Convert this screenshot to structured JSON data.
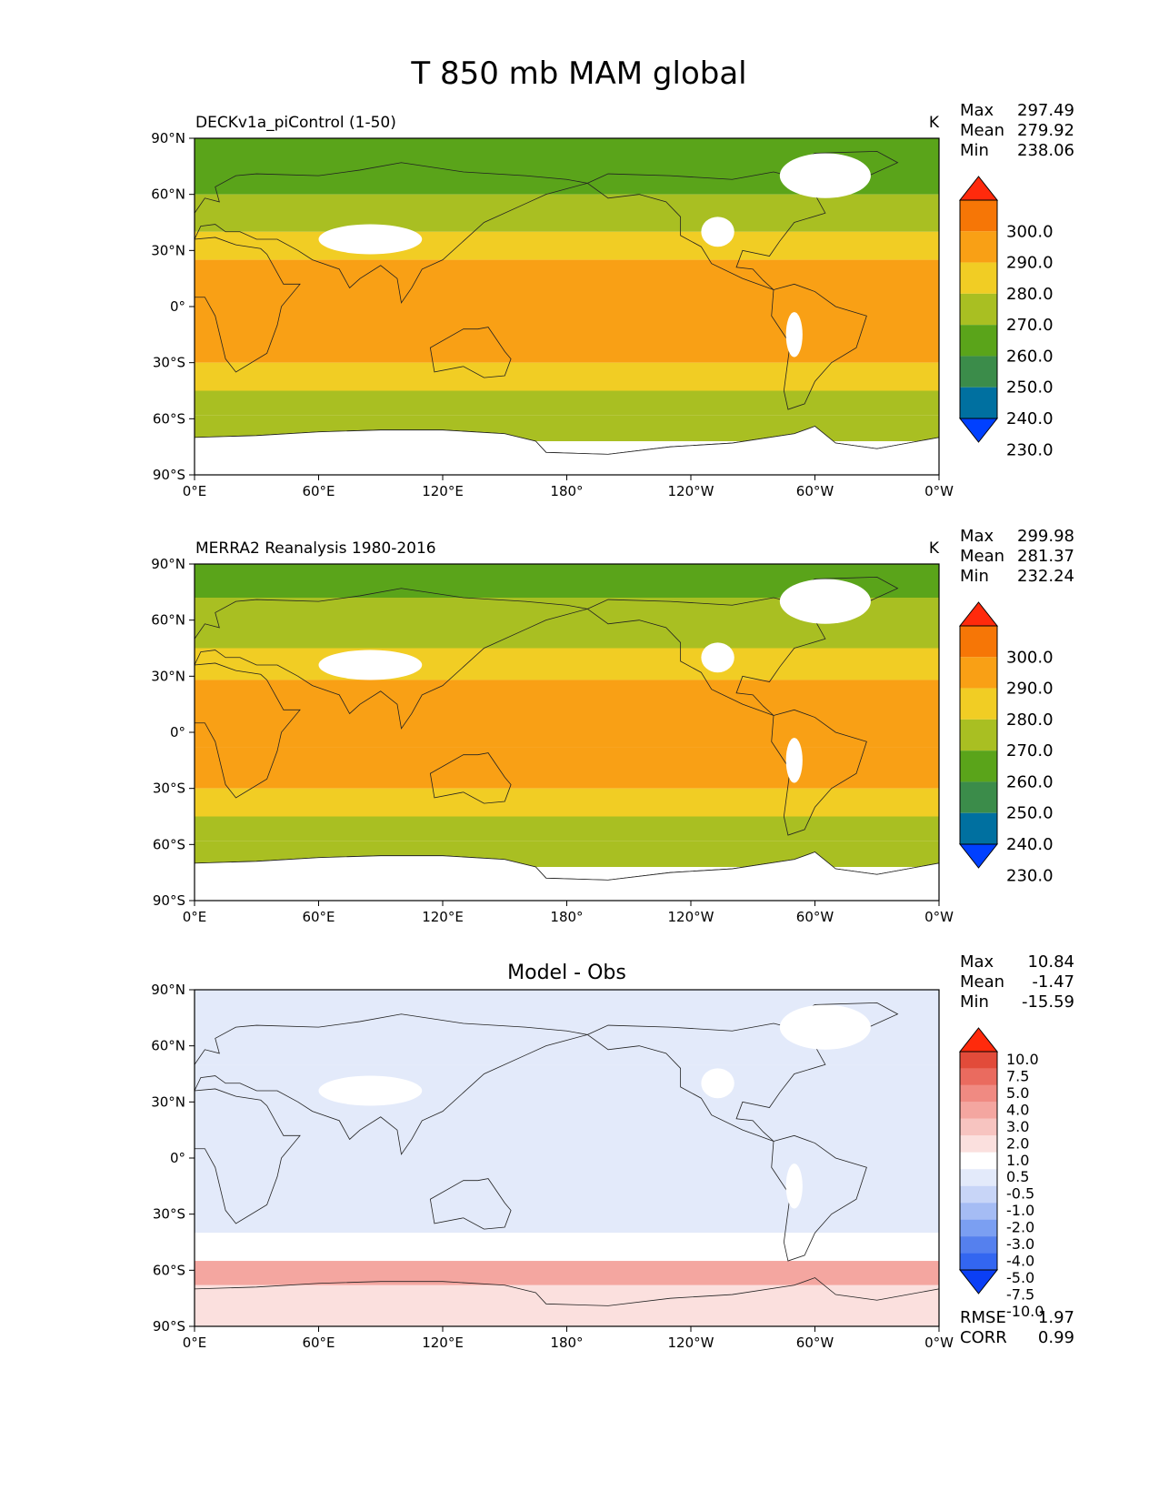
{
  "title": "T 850 mb MAM global",
  "x_tick_labels": [
    "0°E",
    "60°E",
    "120°E",
    "180°",
    "120°W",
    "60°W",
    "0°W"
  ],
  "y_tick_labels": [
    "90°N",
    "60°N",
    "30°N",
    "0°",
    "30°S",
    "60°S",
    "90°S"
  ],
  "colors": {
    "abs_levels": [
      "#0040ff",
      "#0070a0",
      "#3b8c4a",
      "#5aa41a",
      "#a9bf22",
      "#f1cd24",
      "#f9a015",
      "#f67606",
      "#ff2a0c"
    ],
    "diff_levels": [
      "#0b3ff5",
      "#3366f0",
      "#5580ee",
      "#7b9ff2",
      "#a5bcf4",
      "#c8d5f7",
      "#e3eafa",
      "#ffffff",
      "#fbe0de",
      "#f7c4c0",
      "#f4a6a0",
      "#f08a82",
      "#ea6b5f",
      "#e24b3a",
      "#ff2a0c"
    ],
    "land": "#ffffff",
    "coast": "#222222"
  },
  "panels": [
    {
      "left_label": "DECKv1a_piControl (1-50)",
      "units": "K",
      "stats": [
        {
          "label": "Max",
          "value": "297.49"
        },
        {
          "label": "Mean",
          "value": "279.92"
        },
        {
          "label": "Min",
          "value": "238.06"
        }
      ],
      "colorbar_ticks": [
        "300.0",
        "290.0",
        "280.0",
        "270.0",
        "260.0",
        "250.0",
        "240.0",
        "230.0"
      ]
    },
    {
      "left_label": "MERRA2 Reanalysis 1980-2016",
      "units": "K",
      "stats": [
        {
          "label": "Max",
          "value": "299.98"
        },
        {
          "label": "Mean",
          "value": "281.37"
        },
        {
          "label": "Min",
          "value": "232.24"
        }
      ],
      "colorbar_ticks": [
        "300.0",
        "290.0",
        "280.0",
        "270.0",
        "260.0",
        "250.0",
        "240.0",
        "230.0"
      ]
    },
    {
      "center_title": "Model - Obs",
      "stats": [
        {
          "label": "Max",
          "value": "10.84"
        },
        {
          "label": "Mean",
          "value": "-1.47"
        },
        {
          "label": "Min",
          "value": "-15.59"
        }
      ],
      "colorbar_ticks": [
        "10.0",
        "7.5",
        "5.0",
        "4.0",
        "3.0",
        "2.0",
        "1.0",
        "0.5",
        "-0.5",
        "-1.0",
        "-2.0",
        "-3.0",
        "-4.0",
        "-5.0",
        "-7.5",
        "-10.0"
      ],
      "metrics": [
        {
          "label": "RMSE",
          "value": "1.97"
        },
        {
          "label": "CORR",
          "value": "0.99"
        }
      ]
    }
  ],
  "chart_data": [
    {
      "type": "heatmap",
      "title": "DECKv1a_piControl (1-50)",
      "units": "K",
      "xlim": [
        0,
        360
      ],
      "ylim": [
        -90,
        90
      ],
      "levels": [
        230,
        240,
        250,
        260,
        270,
        280,
        290,
        300
      ],
      "zonal_band_values": [
        {
          "lat_range": [
            60,
            90
          ],
          "value": 255
        },
        {
          "lat_range": [
            40,
            60
          ],
          "value": 262
        },
        {
          "lat_range": [
            25,
            40
          ],
          "value": 275
        },
        {
          "lat_range": [
            -30,
            25
          ],
          "value": 284
        },
        {
          "lat_range": [
            -45,
            -30
          ],
          "value": 275
        },
        {
          "lat_range": [
            -58,
            -45
          ],
          "value": 268
        },
        {
          "lat_range": [
            -72,
            -58
          ],
          "value": 262
        }
      ],
      "stats": {
        "max": 297.49,
        "mean": 279.92,
        "min": 238.06
      }
    },
    {
      "type": "heatmap",
      "title": "MERRA2 Reanalysis 1980-2016",
      "units": "K",
      "xlim": [
        0,
        360
      ],
      "ylim": [
        -90,
        90
      ],
      "levels": [
        230,
        240,
        250,
        260,
        270,
        280,
        290,
        300
      ],
      "zonal_band_values": [
        {
          "lat_range": [
            72,
            90
          ],
          "value": 255
        },
        {
          "lat_range": [
            45,
            72
          ],
          "value": 262
        },
        {
          "lat_range": [
            28,
            45
          ],
          "value": 275
        },
        {
          "lat_range": [
            -8,
            28
          ],
          "value": 288
        },
        {
          "lat_range": [
            -30,
            -8
          ],
          "value": 284
        },
        {
          "lat_range": [
            -45,
            -30
          ],
          "value": 275
        },
        {
          "lat_range": [
            -58,
            -45
          ],
          "value": 268
        },
        {
          "lat_range": [
            -72,
            -58
          ],
          "value": 262
        }
      ],
      "stats": {
        "max": 299.98,
        "mean": 281.37,
        "min": 232.24
      }
    },
    {
      "type": "heatmap",
      "title": "Model - Obs",
      "xlim": [
        0,
        360
      ],
      "ylim": [
        -90,
        90
      ],
      "levels": [
        -10.0,
        -7.5,
        -5.0,
        -4.0,
        -3.0,
        -2.0,
        -1.0,
        -0.5,
        0.5,
        1.0,
        2.0,
        3.0,
        4.0,
        5.0,
        7.5,
        10.0
      ],
      "zonal_band_values": [
        {
          "lat_range": [
            50,
            90
          ],
          "value": -2.0
        },
        {
          "lat_range": [
            -40,
            50
          ],
          "value": -1.5
        },
        {
          "lat_range": [
            -55,
            -40
          ],
          "value": -0.8
        },
        {
          "lat_range": [
            -68,
            -55
          ],
          "value": 1.5
        },
        {
          "lat_range": [
            -90,
            -68
          ],
          "value": 0.0
        }
      ],
      "stats": {
        "max": 10.84,
        "mean": -1.47,
        "min": -15.59
      },
      "rmse": 1.97,
      "corr": 0.99
    }
  ]
}
